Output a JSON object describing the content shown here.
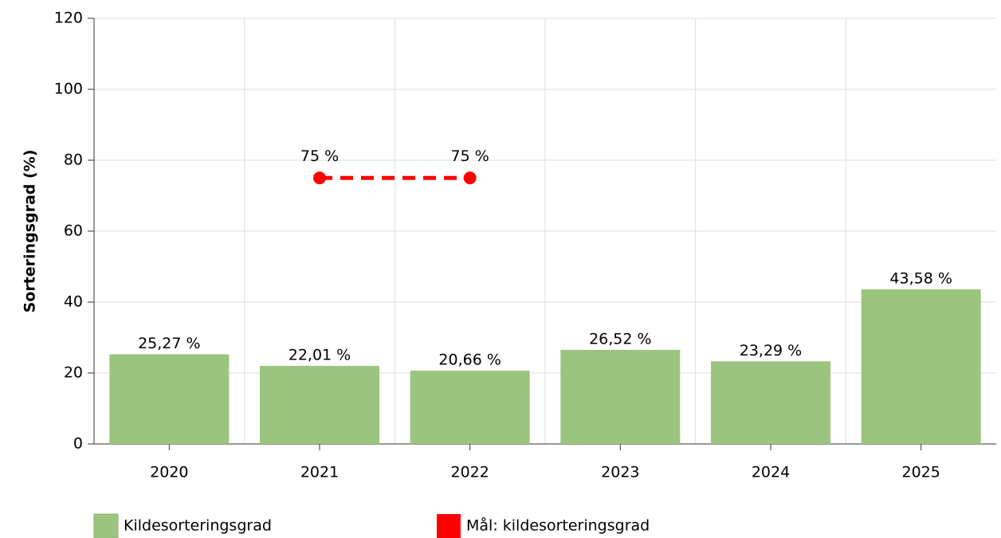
{
  "chart_data": {
    "type": "bar",
    "y_label": "Sorteringsgrad (%)",
    "categories": [
      "2020",
      "2021",
      "2022",
      "2023",
      "2024",
      "2025"
    ],
    "series": [
      {
        "name": "Kildesorteringsgrad",
        "type": "bar",
        "color": "#9bc47e",
        "values": [
          25.27,
          22.01,
          20.66,
          26.52,
          23.29,
          43.58
        ],
        "value_labels": [
          "25,27 %",
          "22,01 %",
          "20,66 %",
          "26,52 %",
          "23,29 %",
          "43,58 %"
        ]
      },
      {
        "name": "Mål: kildesorteringsgrad",
        "type": "line",
        "color": "#ff0000",
        "values": [
          null,
          75,
          75,
          null,
          null,
          null
        ],
        "value_labels": [
          null,
          "75 %",
          "75 %",
          null,
          null,
          null
        ]
      }
    ],
    "ylim": [
      0,
      120
    ],
    "yticks": [
      0,
      20,
      40,
      60,
      80,
      100,
      120
    ],
    "grid": true,
    "legend": "bottom"
  }
}
